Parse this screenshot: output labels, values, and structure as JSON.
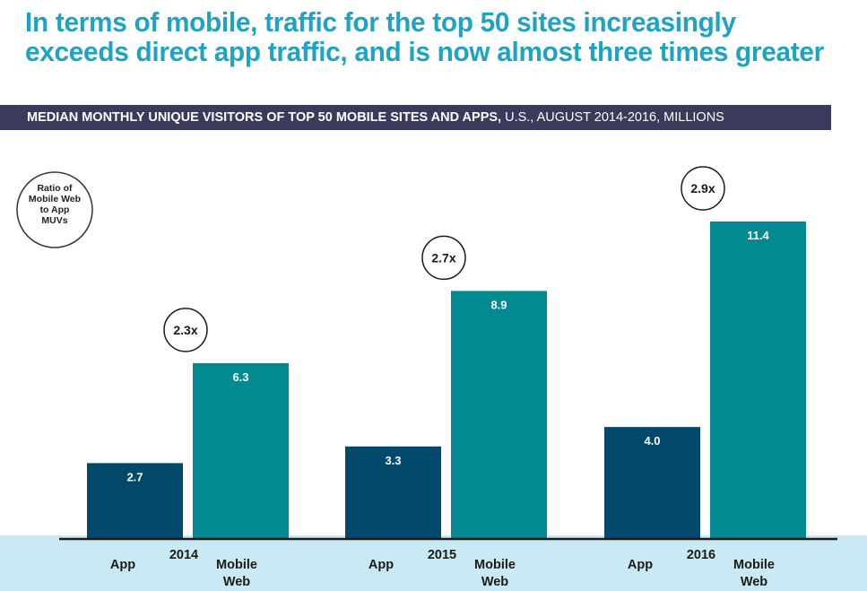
{
  "headline": "In terms of mobile, traffic for the top 50 sites increasingly exceeds direct app traffic, and is now almost three times greater",
  "subtitle": {
    "bold": "MEDIAN MONTHLY UNIQUE VISITORS OF TOP 50 MOBILE SITES AND APPS,",
    "regular": " U.S., AUGUST 2014-2016, MILLIONS"
  },
  "legend_note": [
    "Ratio of",
    "Mobile Web",
    "to App",
    "MUVs"
  ],
  "colors": {
    "app": "#03496b",
    "mobile_web": "#028a90",
    "headline": "#1fa3c3",
    "band": "#c9e9f4"
  },
  "chart_data": {
    "type": "bar",
    "categories": [
      "2014",
      "2015",
      "2016"
    ],
    "series": [
      {
        "name": "App",
        "values": [
          2.7,
          3.3,
          4.0
        ]
      },
      {
        "name": "Mobile Web",
        "values": [
          6.3,
          8.9,
          11.4
        ]
      }
    ],
    "ratios": [
      "2.3x",
      "2.7x",
      "2.9x"
    ],
    "title": "MEDIAN MONTHLY UNIQUE VISITORS OF TOP 50 MOBILE SITES AND APPS, U.S., AUGUST 2014-2016, MILLIONS",
    "ylim": [
      0,
      11.4
    ]
  }
}
